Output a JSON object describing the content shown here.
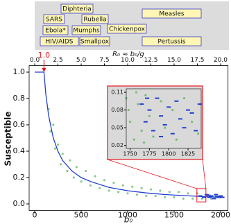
{
  "diseases": {
    "labels": [
      "Diphteria",
      "SARS",
      "Rubella",
      "Measles",
      "Ebola*",
      "Mumphs",
      "Chickenpox",
      "HIV/AIDS",
      "Smallpox",
      "Pertussis"
    ]
  },
  "chart_data": {
    "type": "scatter",
    "xlabel": "b₀",
    "ylabel": "Susceptible",
    "x2label": "R₀ ≈ b₀/g",
    "xlim": [
      -60,
      2080
    ],
    "xticks": [
      0,
      500,
      1000,
      1500,
      2000
    ],
    "ylim": [
      -0.05,
      1.05
    ],
    "yticks": [
      {
        "value": 0,
        "label": "0.0"
      },
      0.2,
      0.4,
      0.6,
      0.8,
      {
        "value": 1,
        "label": "1.0"
      }
    ],
    "x2lim": [
      -0.6,
      20.8
    ],
    "x2ticks": [
      {
        "value": 0,
        "label": "0.0"
      },
      2.5,
      {
        "value": 5,
        "label": "5.0"
      },
      7.5,
      {
        "value": 10,
        "label": "10.0"
      },
      12.5,
      {
        "value": 15,
        "label": "15.0"
      },
      17.5,
      {
        "value": 20,
        "label": "20.0"
      }
    ],
    "annotation": {
      "value": 1,
      "label": "1.0",
      "color": "#e8141c"
    },
    "series": [
      {
        "mode": "markers",
        "color": "#2ca02c",
        "x": [
          150,
          170,
          200,
          220,
          250,
          280,
          300,
          350,
          380,
          420,
          450,
          500,
          550,
          600,
          650,
          700,
          750,
          800,
          850,
          900,
          950,
          1000,
          1050,
          1100,
          1150,
          1200,
          1250,
          1300,
          1350,
          1400,
          1450,
          1500,
          1550,
          1600,
          1650,
          1700,
          1750,
          1800,
          1850,
          1900,
          1950,
          2000
        ],
        "values": [
          0.72,
          0.55,
          0.6,
          0.42,
          0.45,
          0.3,
          0.38,
          0.25,
          0.33,
          0.2,
          0.28,
          0.17,
          0.25,
          0.14,
          0.21,
          0.12,
          0.18,
          0.1,
          0.16,
          0.09,
          0.14,
          0.08,
          0.13,
          0.07,
          0.12,
          0.06,
          0.11,
          0.06,
          0.1,
          0.05,
          0.09,
          0.05,
          0.09,
          0.04,
          0.08,
          0.04,
          0.08,
          0.04,
          0.07,
          0.04,
          0.07,
          0.05
        ]
      },
      {
        "mode": "lines",
        "color": "#1f3fd0",
        "x": [
          0,
          100,
          120,
          150,
          200,
          250,
          300,
          400,
          500,
          600,
          800,
          1000,
          1200,
          1400,
          1600,
          1800,
          2000
        ],
        "values": [
          1,
          1,
          0.83,
          0.67,
          0.5,
          0.4,
          0.33,
          0.25,
          0.2,
          0.17,
          0.125,
          0.1,
          0.083,
          0.071,
          0.063,
          0.056,
          0.05
        ]
      },
      {
        "mode": "dashes",
        "color": "#1f3fd0",
        "x": [
          1780,
          1820,
          1850,
          1880,
          1900,
          1930,
          1950,
          1980,
          2000,
          2020,
          1960,
          1870
        ],
        "values": [
          0.06,
          0.05,
          0.07,
          0.05,
          0.06,
          0.04,
          0.07,
          0.05,
          0.06,
          0.05,
          0.055,
          0.065
        ]
      }
    ],
    "inset": {
      "xlim": [
        1745,
        1842
      ],
      "ylim": [
        0.015,
        0.116
      ],
      "xticks": [
        1750,
        1775,
        1800,
        1825
      ],
      "yticks": [
        0.02,
        0.05,
        0.08,
        0.11
      ],
      "border_color": "#e8141c",
      "series": [
        {
          "mode": "markers",
          "color": "#2ca02c",
          "x": [
            1745,
            1750,
            1755,
            1760,
            1765,
            1770,
            1775,
            1780,
            1790,
            1795,
            1805,
            1810,
            1820,
            1830,
            1838,
            1748,
            1758,
            1768
          ],
          "values": [
            0.1,
            0.06,
            0.03,
            0.09,
            0.045,
            0.105,
            0.07,
            0.035,
            0.095,
            0.05,
            0.08,
            0.03,
            0.1,
            0.06,
            0.04,
            0.08,
            0.11,
            0.025
          ]
        },
        {
          "mode": "dashes",
          "color": "#1f3fd0",
          "x": [
            1765,
            1770,
            1775,
            1780,
            1785,
            1790,
            1795,
            1800,
            1805,
            1810,
            1815,
            1820,
            1825,
            1830,
            1835,
            1840,
            1772,
            1790
          ],
          "values": [
            0.09,
            0.06,
            0.08,
            0.045,
            0.1,
            0.07,
            0.055,
            0.085,
            0.04,
            0.095,
            0.065,
            0.05,
            0.08,
            0.075,
            0.045,
            0.09,
            0.1,
            0.035
          ]
        }
      ]
    }
  }
}
